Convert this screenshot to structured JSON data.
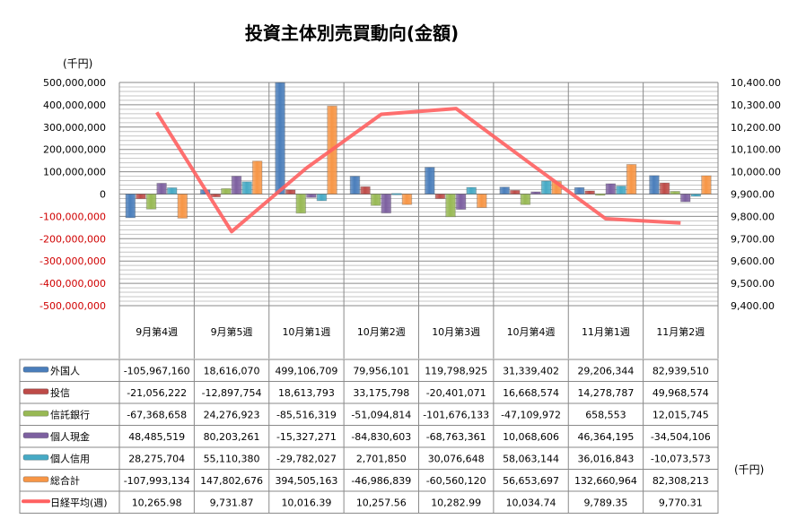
{
  "chart_data": {
    "type": "bar",
    "title": "投資主体別売買動向(金額)",
    "left_unit": "(千円)",
    "table_unit": "(千円)",
    "categories": [
      "9月第4週",
      "9月第5週",
      "10月第1週",
      "10月第2週",
      "10月第3週",
      "10月第4週",
      "11月第1週",
      "11月第2週"
    ],
    "ylim": [
      -500000000,
      500000000
    ],
    "y2lim": [
      9400,
      10400
    ],
    "yticks": [
      "500,000,000",
      "400,000,000",
      "300,000,000",
      "200,000,000",
      "100,000,000",
      "0",
      "-100,000,000",
      "-200,000,000",
      "-300,000,000",
      "-400,000,000",
      "-500,000,000"
    ],
    "y2ticks": [
      "10,400.00",
      "10,300.00",
      "10,200.00",
      "10,100.00",
      "10,000.00",
      "9,900.00",
      "9,800.00",
      "9,700.00",
      "9,600.00",
      "9,500.00",
      "9,400.00"
    ],
    "negative_tick_color": "#d00000",
    "grid": true,
    "legend": "data-table",
    "series": [
      {
        "name": "外国人",
        "type": "bar",
        "axis": "left",
        "color": "#4a7ebb",
        "values": [
          -105967160,
          18616070,
          499106709,
          79956101,
          119798925,
          31339402,
          29206344,
          82939510
        ],
        "labels": [
          "-105,967,160",
          "18,616,070",
          "499,106,709",
          "79,956,101",
          "119,798,925",
          "31,339,402",
          "29,206,344",
          "82,939,510"
        ]
      },
      {
        "name": "投信",
        "type": "bar",
        "axis": "left",
        "color": "#be4b48",
        "values": [
          -21056222,
          -12897754,
          18613793,
          33175798,
          -20401071,
          16668574,
          14278787,
          49968574
        ],
        "labels": [
          "-21,056,222",
          "-12,897,754",
          "18,613,793",
          "33,175,798",
          "-20,401,071",
          "16,668,574",
          "14,278,787",
          "49,968,574"
        ]
      },
      {
        "name": "信託銀行",
        "type": "bar",
        "axis": "left",
        "color": "#98b954",
        "values": [
          -67368658,
          24276923,
          -85516319,
          -51094814,
          -101676133,
          -47109972,
          658553,
          12015745
        ],
        "labels": [
          "-67,368,658",
          "24,276,923",
          "-85,516,319",
          "-51,094,814",
          "-101,676,133",
          "-47,109,972",
          "658,553",
          "12,015,745"
        ]
      },
      {
        "name": "個人現金",
        "type": "bar",
        "axis": "left",
        "color": "#7d60a0",
        "values": [
          48485519,
          80203261,
          -15327271,
          -84830603,
          -68763361,
          10068606,
          46364195,
          -34504106
        ],
        "labels": [
          "48,485,519",
          "80,203,261",
          "-15,327,271",
          "-84,830,603",
          "-68,763,361",
          "10,068,606",
          "46,364,195",
          "-34,504,106"
        ]
      },
      {
        "name": "個人信用",
        "type": "bar",
        "axis": "left",
        "color": "#46aac5",
        "values": [
          28275704,
          55110380,
          -29782027,
          2701850,
          30076648,
          58063144,
          36016843,
          -10073573
        ],
        "labels": [
          "28,275,704",
          "55,110,380",
          "-29,782,027",
          "2,701,850",
          "30,076,648",
          "58,063,144",
          "36,016,843",
          "-10,073,573"
        ]
      },
      {
        "name": "総合計",
        "type": "bar",
        "axis": "left",
        "color": "#f79646",
        "values": [
          -107993134,
          147802676,
          394505163,
          -46986839,
          -60560120,
          56653697,
          132660964,
          82308213
        ],
        "labels": [
          "-107,993,134",
          "147,802,676",
          "394,505,163",
          "-46,986,839",
          "-60,560,120",
          "56,653,697",
          "132,660,964",
          "82,308,213"
        ]
      },
      {
        "name": "日経平均(週)",
        "type": "line",
        "axis": "right",
        "color": "#ff6060",
        "values": [
          10265.98,
          9731.87,
          10016.39,
          10257.56,
          10282.99,
          10034.74,
          9789.35,
          9770.31
        ],
        "labels": [
          "10,265.98",
          "9,731.87",
          "10,016.39",
          "10,257.56",
          "10,282.99",
          "10,034.74",
          "9,789.35",
          "9,770.31"
        ]
      }
    ]
  }
}
